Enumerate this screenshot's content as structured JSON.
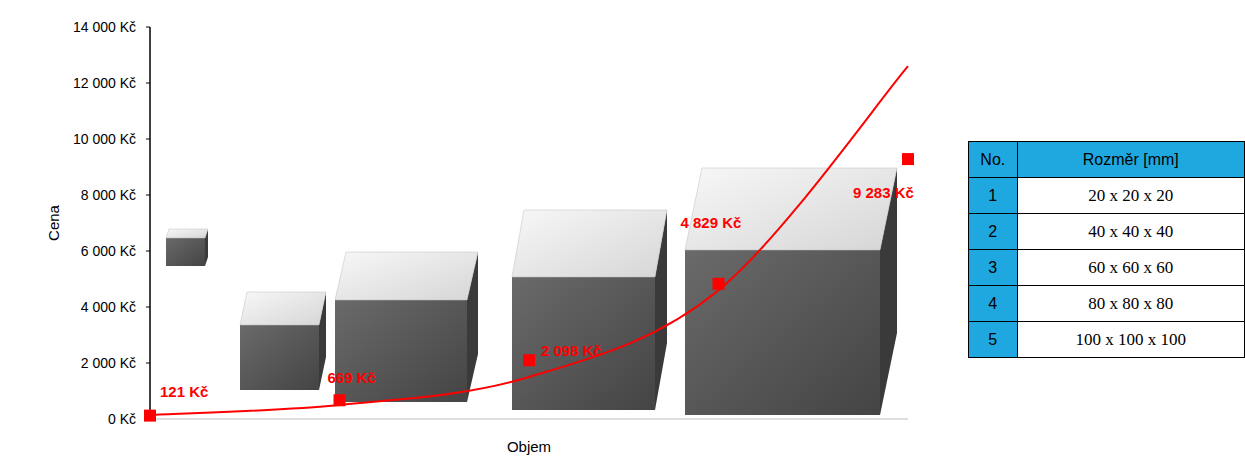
{
  "chart_data": {
    "type": "scatter",
    "x_label": "Objem",
    "y_label": "Cena",
    "x": [
      1,
      2,
      3,
      4,
      5
    ],
    "xlim": [
      1,
      5
    ],
    "ylim": [
      0,
      14000
    ],
    "yticks": [
      {
        "value": 0,
        "label": "0 Kč"
      },
      {
        "value": 2000,
        "label": "2 000 Kč"
      },
      {
        "value": 4000,
        "label": "4 000 Kč"
      },
      {
        "value": 6000,
        "label": "6 000 Kč"
      },
      {
        "value": 8000,
        "label": "8 000 Kč"
      },
      {
        "value": 10000,
        "label": "10 000 Kč"
      },
      {
        "value": 12000,
        "label": "12 000 Kč"
      },
      {
        "value": 14000,
        "label": "14 000 Kč"
      }
    ],
    "tick_labels": "y",
    "grid": false,
    "data_labels": true,
    "series": [
      {
        "type": "scatter",
        "marker": "square",
        "color": "#ff0000",
        "values": [
          121,
          669,
          2098,
          4829,
          9283
        ],
        "value_labels": [
          "121 Kč",
          "669 Kč",
          "2 098 Kč",
          "4 829 Kč",
          "9 283 Kč"
        ]
      },
      {
        "type": "line",
        "line_style": "solid",
        "color": "#ff0000",
        "values": [
          150,
          500,
          1500,
          4600,
          12600
        ]
      }
    ]
  },
  "table": {
    "header": [
      "No.",
      "Rozměr [mm]"
    ],
    "rows": [
      [
        1,
        "20 x 20 x 20"
      ],
      [
        2,
        "40 x 40 x 40"
      ],
      [
        3,
        "60 x 60 x 60"
      ],
      [
        4,
        "80 x 80 x 80"
      ],
      [
        5,
        "100 x 100 x 100"
      ]
    ]
  }
}
